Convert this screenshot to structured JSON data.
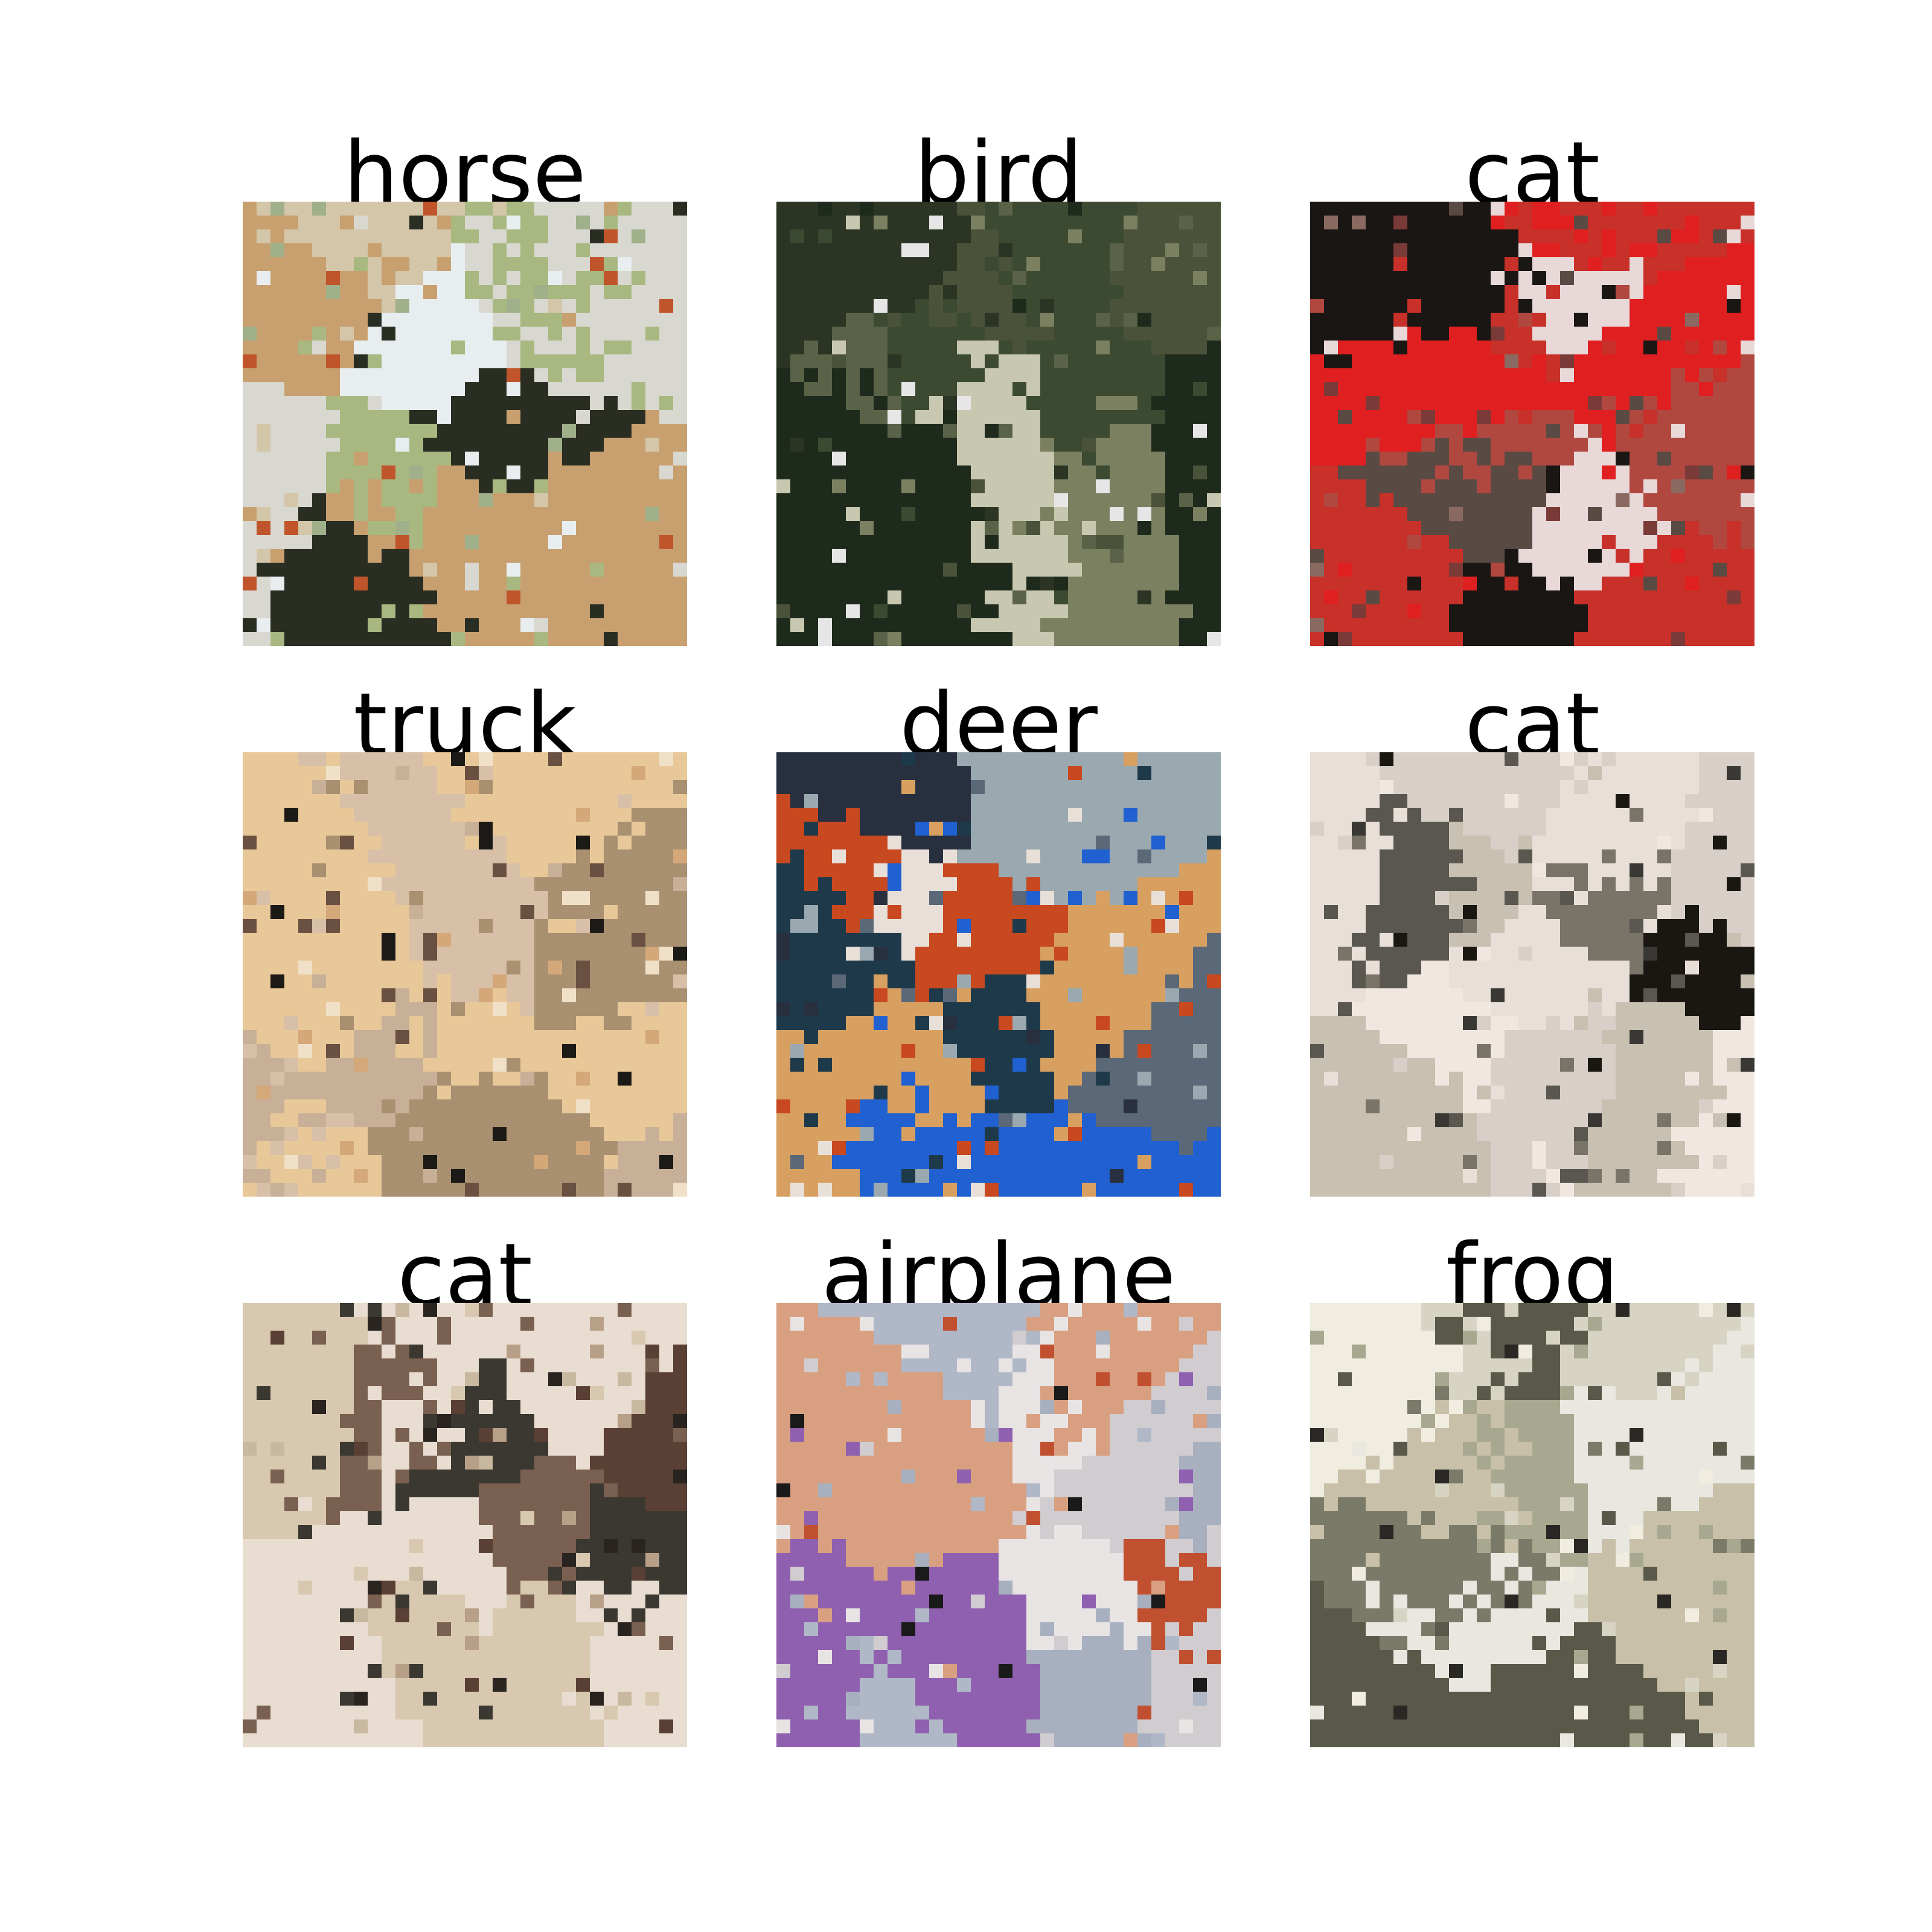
{
  "figure": {
    "panels": [
      {
        "label": "horse",
        "palette": [
          "#9fb08a",
          "#d8d8d0",
          "#c8a070",
          "#2a2d22",
          "#e8eef0",
          "#a8b880",
          "#c0542a",
          "#d4c6a8"
        ]
      },
      {
        "label": "bird",
        "palette": [
          "#1e2a1c",
          "#3c4a32",
          "#5a6248",
          "#c8c8b0",
          "#7a8060",
          "#2c3424",
          "#e6e6e6",
          "#4a523a"
        ]
      },
      {
        "label": "cat",
        "palette": [
          "#7a3a38",
          "#c8302a",
          "#1a1614",
          "#5a4a44",
          "#e8d8d8",
          "#b04840",
          "#e02020",
          "#8a6a60"
        ]
      },
      {
        "label": "truck",
        "palette": [
          "#e8c898",
          "#d8c0a8",
          "#1c1a16",
          "#c8b098",
          "#f0e0c8",
          "#a89070",
          "#d4a878",
          "#6a5040"
        ]
      },
      {
        "label": "deer",
        "palette": [
          "#1e3a4a",
          "#c84820",
          "#2060d0",
          "#d8a060",
          "#9aa8b0",
          "#e8e0d8",
          "#5a6878",
          "#283040"
        ]
      },
      {
        "label": "cat",
        "palette": [
          "#d8d0c8",
          "#3a3834",
          "#5a5650",
          "#e8e0d8",
          "#c8c0b0",
          "#7a7468",
          "#f0e8e0",
          "#1a1612"
        ]
      },
      {
        "label": "cat",
        "palette": [
          "#d8c8b0",
          "#5a4034",
          "#2a2420",
          "#b8a088",
          "#e8ddd0",
          "#7a6050",
          "#3a3830",
          "#c8b8a0"
        ]
      },
      {
        "label": "airplane",
        "palette": [
          "#d0ccd0",
          "#b0b8c8",
          "#c05030",
          "#1a1a1a",
          "#9060b0",
          "#e8e4e4",
          "#d8a080",
          "#a8b0c0"
        ]
      },
      {
        "label": "frog",
        "palette": [
          "#d8d4c4",
          "#2a2824",
          "#e8e8e0",
          "#a8a890",
          "#5a5848",
          "#c8c0a8",
          "#7a7a68",
          "#f0ece0"
        ]
      }
    ]
  }
}
